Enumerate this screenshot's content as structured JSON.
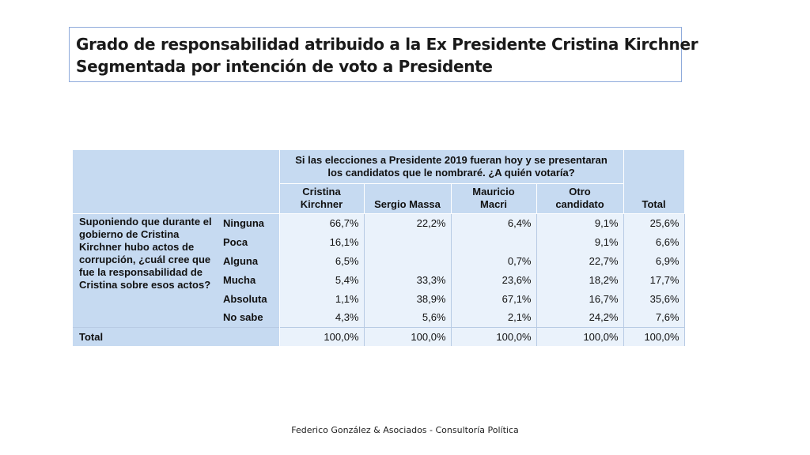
{
  "title": {
    "line1": "Grado de responsabilidad atribuido a la Ex Presidente Cristina Kirchner",
    "line2": "Segmentada por intención de voto a Presidente"
  },
  "table": {
    "question_header_line1": "Si las elecciones a Presidente 2019 fueran hoy y se presentaran",
    "question_header_line2": "los candidatos que le nombraré. ¿A quién votaría?",
    "columns": [
      {
        "line1": "Cristina",
        "line2": "Kirchner"
      },
      {
        "line1": "",
        "line2": "Sergio Massa"
      },
      {
        "line1": "Mauricio",
        "line2": "Macri"
      },
      {
        "line1": "Otro",
        "line2": "candidato"
      },
      {
        "line1": "",
        "line2": "Total"
      }
    ],
    "row_question": "Suponiendo que durante el gobierno de Cristina Kirchner hubo actos de corrupción, ¿cuál cree que fue la responsabilidad de Cristina sobre esos actos?",
    "rows": [
      {
        "label": "Ninguna",
        "values": [
          "66,7%",
          "22,2%",
          "6,4%",
          "9,1%",
          "25,6%"
        ]
      },
      {
        "label": "Poca",
        "values": [
          "16,1%",
          "",
          "",
          "9,1%",
          "6,6%"
        ]
      },
      {
        "label": "Alguna",
        "values": [
          "6,5%",
          "",
          "0,7%",
          "22,7%",
          "6,9%"
        ]
      },
      {
        "label": "Mucha",
        "values": [
          "5,4%",
          "33,3%",
          "23,6%",
          "18,2%",
          "17,7%"
        ]
      },
      {
        "label": "Absoluta",
        "values": [
          "1,1%",
          "38,9%",
          "67,1%",
          "16,7%",
          "35,6%"
        ]
      },
      {
        "label": "No sabe",
        "values": [
          "4,3%",
          "5,6%",
          "2,1%",
          "24,2%",
          "7,6%"
        ]
      }
    ],
    "total_row": {
      "label": "Total",
      "values": [
        "100,0%",
        "100,0%",
        "100,0%",
        "100,0%",
        "100,0%"
      ]
    }
  },
  "footer": "Federico González & Asociados - Consultoría Política"
}
